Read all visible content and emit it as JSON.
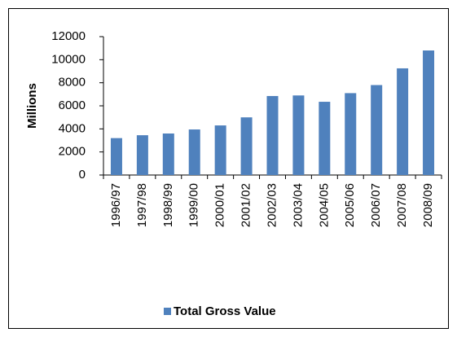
{
  "chart_data": {
    "type": "bar",
    "categories": [
      "1996/97",
      "1997/98",
      "1998/99",
      "1999/00",
      "2000/01",
      "2001/02",
      "2002/03",
      "2003/04",
      "2004/05",
      "2005/06",
      "2006/07",
      "2007/08",
      "2008/09"
    ],
    "series": [
      {
        "name": "Total Gross Value",
        "color": "#4f81bd",
        "values": [
          3200,
          3450,
          3600,
          3950,
          4300,
          5000,
          6850,
          6900,
          6350,
          7100,
          7800,
          9250,
          10800
        ]
      }
    ],
    "y_label": "Millions",
    "ylim": [
      0,
      12000
    ],
    "yticks": [
      0,
      2000,
      4000,
      6000,
      8000,
      10000,
      12000
    ],
    "legend": "bottom"
  }
}
